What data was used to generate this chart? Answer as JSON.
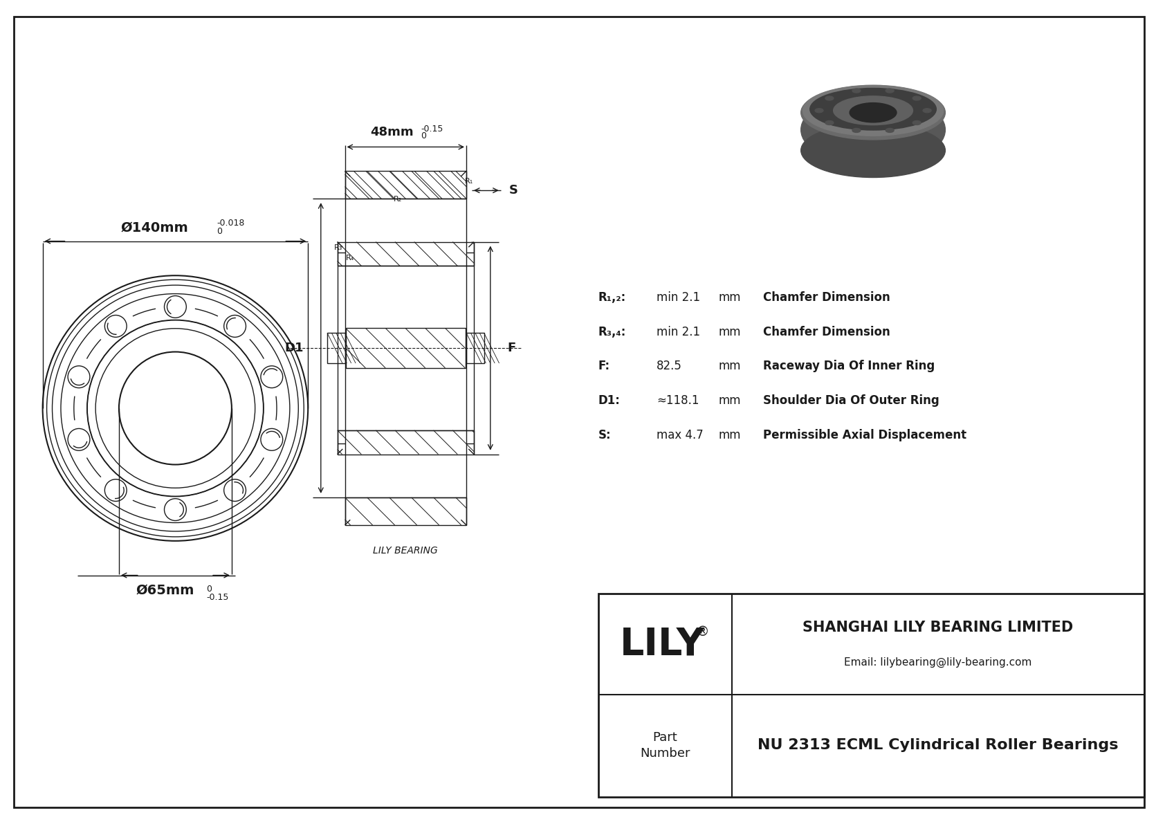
{
  "bg_color": "#ffffff",
  "line_color": "#1a1a1a",
  "title_block": {
    "company": "SHANGHAI LILY BEARING LIMITED",
    "email": "Email: lilybearing@lily-bearing.com",
    "logo": "LILY",
    "logo_super": "®",
    "part_label": "Part\nNumber",
    "part_number": "NU 2313 ECML Cylindrical Roller Bearings"
  },
  "dimensions_label": "LILY BEARING",
  "outer_dim_label": "Ø140mm",
  "outer_dim_tol_top": "0",
  "outer_dim_tol_bot": "-0.018",
  "inner_dim_label": "Ø65mm",
  "inner_dim_tol_top": "0",
  "inner_dim_tol_bot": "-0.15",
  "width_dim_label": "48mm",
  "width_dim_tol_top": "0",
  "width_dim_tol_bot": "-0.15",
  "param_rows": [
    {
      "label": "R₁,₂:",
      "value": "min 2.1",
      "unit": "mm",
      "desc": "Chamfer Dimension"
    },
    {
      "label": "R₃,₄:",
      "value": "min 2.1",
      "unit": "mm",
      "desc": "Chamfer Dimension"
    },
    {
      "label": "F:",
      "value": "82.5",
      "unit": "mm",
      "desc": "Raceway Dia Of Inner Ring"
    },
    {
      "label": "D1:",
      "value": "≈118.1",
      "unit": "mm",
      "desc": "Shoulder Dia Of Outer Ring"
    },
    {
      "label": "S:",
      "value": "max 4.7",
      "unit": "mm",
      "desc": "Permissible Axial Displacement"
    }
  ]
}
